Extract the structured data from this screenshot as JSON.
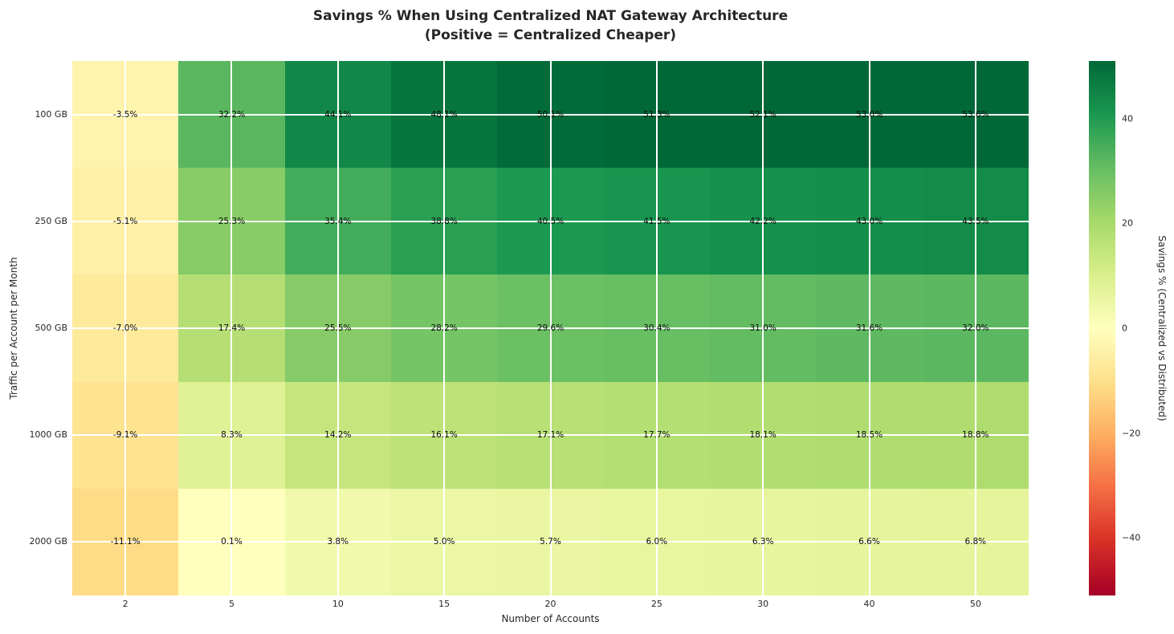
{
  "chart_data": {
    "type": "heatmap",
    "title": "Savings % When Using Centralized NAT Gateway Architecture",
    "subtitle": "(Positive = Centralized Cheaper)",
    "xlabel": "Number of Accounts",
    "ylabel": "Traffic per Account per Month",
    "x_categories": [
      "2",
      "5",
      "10",
      "15",
      "20",
      "25",
      "30",
      "40",
      "50"
    ],
    "y_categories": [
      "100 GB",
      "250 GB",
      "500 GB",
      "1000 GB",
      "2000 GB"
    ],
    "values": [
      [
        -3.5,
        32.2,
        44.1,
        48.1,
        50.1,
        51.3,
        52.1,
        53.0,
        53.6
      ],
      [
        -5.1,
        25.3,
        35.4,
        38.8,
        40.5,
        41.5,
        42.2,
        43.0,
        43.5
      ],
      [
        -7.0,
        17.4,
        25.5,
        28.2,
        29.6,
        30.4,
        31.0,
        31.6,
        32.0
      ],
      [
        -9.1,
        8.3,
        14.2,
        16.1,
        17.1,
        17.7,
        18.1,
        18.5,
        18.8
      ],
      [
        -11.1,
        0.1,
        3.8,
        5.0,
        5.7,
        6.0,
        6.3,
        6.6,
        6.8
      ]
    ],
    "cell_labels": [
      [
        "-3.5%",
        "32.2%",
        "44.1%",
        "48.1%",
        "50.1%",
        "51.3%",
        "52.1%",
        "53.0%",
        "53.6%"
      ],
      [
        "-5.1%",
        "25.3%",
        "35.4%",
        "38.8%",
        "40.5%",
        "41.5%",
        "42.2%",
        "43.0%",
        "43.5%"
      ],
      [
        "-7.0%",
        "17.4%",
        "25.5%",
        "28.2%",
        "29.6%",
        "30.4%",
        "31.0%",
        "31.6%",
        "32.0%"
      ],
      [
        "-9.1%",
        "8.3%",
        "14.2%",
        "16.1%",
        "17.1%",
        "17.7%",
        "18.1%",
        "18.5%",
        "18.8%"
      ],
      [
        "-11.1%",
        "0.1%",
        "3.8%",
        "5.0%",
        "5.7%",
        "6.0%",
        "6.3%",
        "6.6%",
        "6.8%"
      ]
    ],
    "colorbar": {
      "label": "Savings % (Centralized vs Distributed)",
      "tick_values": [
        40,
        20,
        0,
        -20,
        -40
      ],
      "tick_labels": [
        "40",
        "20",
        "0",
        "−20",
        "−40"
      ],
      "range": [
        -51,
        51
      ]
    },
    "colormap": {
      "name": "RdYlGn",
      "anchors": [
        [
          0.0,
          "#a50026"
        ],
        [
          0.1,
          "#d73027"
        ],
        [
          0.2,
          "#f46d43"
        ],
        [
          0.3,
          "#fdae61"
        ],
        [
          0.4,
          "#fee08b"
        ],
        [
          0.5,
          "#ffffbf"
        ],
        [
          0.6,
          "#d9ef8b"
        ],
        [
          0.7,
          "#a6d96a"
        ],
        [
          0.8,
          "#66bd63"
        ],
        [
          0.9,
          "#1a9850"
        ],
        [
          1.0,
          "#006837"
        ]
      ]
    },
    "layout_hints": {
      "grid": "white lines through cell centers",
      "legend_position": "right colorbar"
    }
  }
}
